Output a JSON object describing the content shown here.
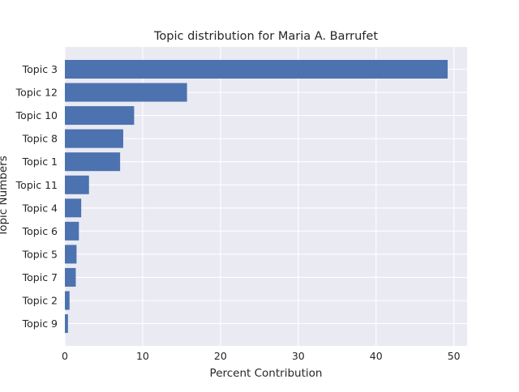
{
  "chart_data": {
    "type": "bar",
    "orientation": "horizontal",
    "title": "Topic distribution for Maria A. Barrufet",
    "xlabel": "Percent Contribution",
    "ylabel": "Topic Numbers",
    "categories": [
      "Topic 3",
      "Topic 12",
      "Topic 10",
      "Topic 8",
      "Topic 1",
      "Topic 11",
      "Topic 4",
      "Topic 6",
      "Topic 5",
      "Topic 7",
      "Topic 2",
      "Topic 9"
    ],
    "values": [
      49.2,
      15.7,
      8.9,
      7.5,
      7.1,
      3.1,
      2.1,
      1.8,
      1.5,
      1.4,
      0.6,
      0.4
    ],
    "xlim": [
      0,
      51.7
    ],
    "xticks": [
      0,
      10,
      20,
      30,
      40,
      50
    ],
    "grid": true,
    "style": "seaborn-darkgrid",
    "colors": {
      "bar": "#4c72b0",
      "plot_background": "#eaeaf2",
      "grid": "#ffffff",
      "text": "#262626"
    }
  }
}
